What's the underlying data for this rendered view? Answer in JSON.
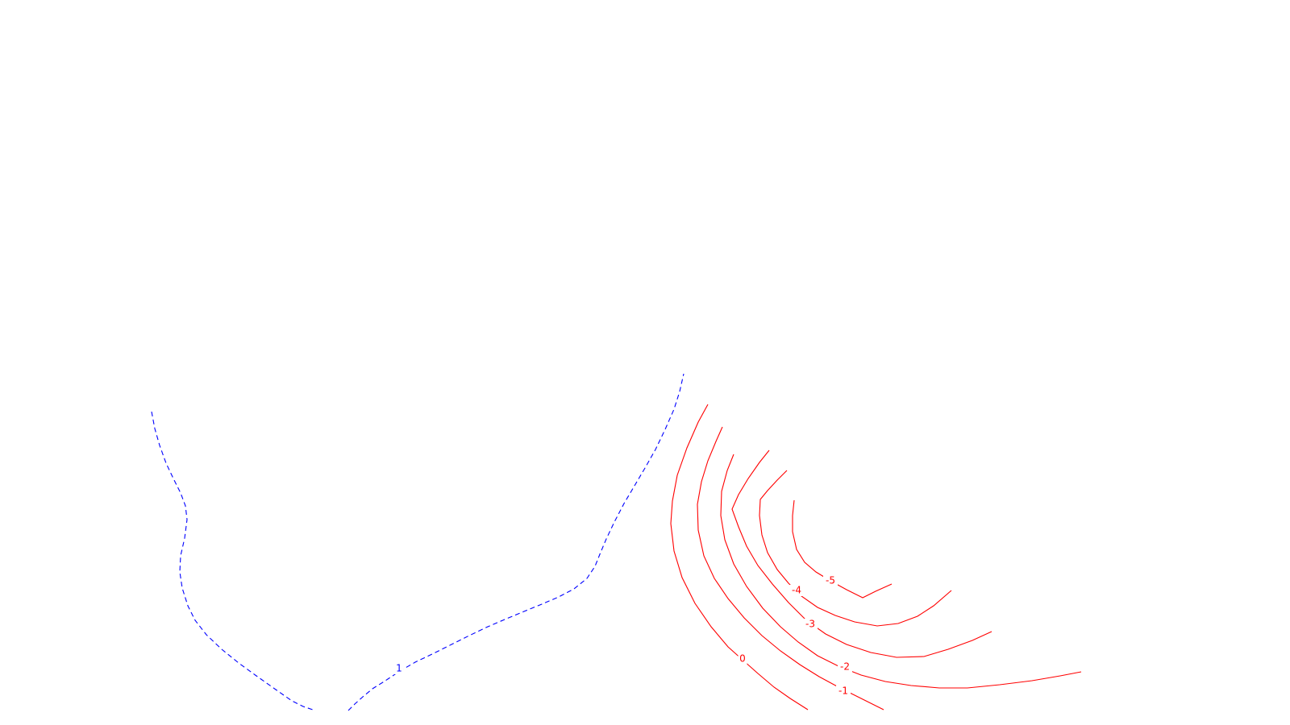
{
  "chart_data": {
    "type": "contour",
    "title": "",
    "xlabel": "",
    "ylabel": "",
    "grid": false,
    "colors": {
      "background": "#ffffff",
      "positive": "#0000ff",
      "negative": "#ff0000"
    },
    "levels": [
      {
        "level": 1,
        "label": "1",
        "color": "#0000ff",
        "style": "dashed",
        "points": [
          [
            188,
            511
          ],
          [
            192,
            532
          ],
          [
            198,
            553
          ],
          [
            206,
            575
          ],
          [
            215,
            594
          ],
          [
            224,
            612
          ],
          [
            230,
            628
          ],
          [
            232,
            645
          ],
          [
            229,
            668
          ],
          [
            224,
            690
          ],
          [
            223,
            710
          ],
          [
            226,
            730
          ],
          [
            233,
            752
          ],
          [
            242,
            770
          ],
          [
            256,
            788
          ],
          [
            275,
            806
          ],
          [
            296,
            823
          ],
          [
            318,
            839
          ],
          [
            342,
            856
          ],
          [
            362,
            870
          ],
          [
            376,
            877
          ],
          [
            388,
            881
          ]
        ],
        "points2": [
          [
            432,
            882
          ],
          [
            440,
            874
          ],
          [
            450,
            865
          ],
          [
            462,
            855
          ],
          [
            478,
            845
          ],
          [
            496,
            833
          ],
          [
            515,
            822
          ],
          [
            538,
            811
          ],
          [
            560,
            800
          ],
          [
            582,
            789
          ],
          [
            605,
            778
          ],
          [
            626,
            769
          ],
          [
            650,
            759
          ],
          [
            672,
            750
          ],
          [
            693,
            741
          ],
          [
            712,
            731
          ],
          [
            728,
            718
          ],
          [
            738,
            703
          ],
          [
            744,
            688
          ],
          [
            752,
            669
          ],
          [
            762,
            648
          ],
          [
            774,
            625
          ],
          [
            787,
            603
          ],
          [
            800,
            581
          ],
          [
            813,
            558
          ],
          [
            825,
            533
          ],
          [
            836,
            508
          ],
          [
            843,
            486
          ],
          [
            848,
            464
          ]
        ],
        "label_at": [
          495,
          830
        ]
      },
      {
        "level": 0,
        "label": "0",
        "color": "#ff0000",
        "style": "solid",
        "points": [
          [
            878,
            502
          ],
          [
            866,
            524
          ],
          [
            852,
            556
          ],
          [
            840,
            590
          ],
          [
            834,
            622
          ],
          [
            832,
            650
          ],
          [
            836,
            684
          ],
          [
            846,
            717
          ],
          [
            862,
            749
          ],
          [
            882,
            778
          ],
          [
            903,
            803
          ],
          [
            922,
            820
          ],
          [
            940,
            836
          ],
          [
            960,
            853
          ],
          [
            980,
            867
          ],
          [
            1002,
            881
          ]
        ],
        "label_at": [
          921,
          818
        ]
      },
      {
        "level": -1,
        "label": "-1",
        "color": "#ff0000",
        "style": "solid",
        "points": [
          [
            896,
            530
          ],
          [
            888,
            548
          ],
          [
            878,
            572
          ],
          [
            870,
            598
          ],
          [
            865,
            626
          ],
          [
            866,
            658
          ],
          [
            873,
            690
          ],
          [
            886,
            718
          ],
          [
            903,
            743
          ],
          [
            923,
            767
          ],
          [
            945,
            789
          ],
          [
            968,
            808
          ],
          [
            992,
            825
          ],
          [
            1016,
            840
          ],
          [
            1040,
            853
          ],
          [
            1062,
            864
          ],
          [
            1080,
            873
          ],
          [
            1096,
            881
          ]
        ],
        "label_at": [
          1046,
          858
        ]
      },
      {
        "level": -2,
        "label": "-2",
        "color": "#ff0000",
        "style": "solid",
        "points": [
          [
            910,
            564
          ],
          [
            902,
            584
          ],
          [
            895,
            610
          ],
          [
            894,
            640
          ],
          [
            899,
            670
          ],
          [
            910,
            700
          ],
          [
            926,
            728
          ],
          [
            946,
            755
          ],
          [
            968,
            778
          ],
          [
            990,
            797
          ],
          [
            1014,
            814
          ],
          [
            1040,
            827
          ],
          [
            1068,
            838
          ],
          [
            1098,
            846
          ],
          [
            1130,
            851
          ],
          [
            1165,
            854
          ],
          [
            1200,
            854
          ],
          [
            1240,
            850
          ],
          [
            1280,
            845
          ],
          [
            1315,
            839
          ],
          [
            1341,
            834
          ]
        ],
        "label_at": [
          1048,
          828
        ]
      },
      {
        "level": -3,
        "label": "-3",
        "color": "#ff0000",
        "style": "solid",
        "points": [
          [
            954,
            559
          ],
          [
            942,
            574
          ],
          [
            928,
            594
          ],
          [
            916,
            614
          ],
          [
            908,
            632
          ],
          [
            916,
            654
          ],
          [
            926,
            678
          ],
          [
            940,
            702
          ],
          [
            958,
            725
          ],
          [
            978,
            748
          ],
          [
            1000,
            770
          ],
          [
            1024,
            787
          ],
          [
            1050,
            800
          ],
          [
            1080,
            810
          ],
          [
            1112,
            816
          ],
          [
            1146,
            815
          ],
          [
            1176,
            806
          ],
          [
            1206,
            795
          ],
          [
            1230,
            784
          ]
        ],
        "label_at": [
          1005,
          775
        ]
      },
      {
        "level": -4,
        "label": "-4",
        "color": "#ff0000",
        "style": "solid",
        "points": [
          [
            976,
            584
          ],
          [
            964,
            596
          ],
          [
            952,
            609
          ],
          [
            943,
            620
          ],
          [
            942,
            640
          ],
          [
            945,
            664
          ],
          [
            952,
            686
          ],
          [
            964,
            707
          ],
          [
            978,
            724
          ],
          [
            994,
            740
          ],
          [
            1014,
            754
          ],
          [
            1036,
            764
          ],
          [
            1060,
            772
          ],
          [
            1088,
            777
          ],
          [
            1114,
            774
          ],
          [
            1138,
            765
          ],
          [
            1158,
            752
          ],
          [
            1180,
            733
          ]
        ],
        "label_at": [
          988,
          733
        ]
      },
      {
        "level": -5,
        "label": "-5",
        "color": "#ff0000",
        "style": "solid",
        "points": [
          [
            985,
            621
          ],
          [
            983,
            640
          ],
          [
            983,
            660
          ],
          [
            988,
            682
          ],
          [
            998,
            698
          ],
          [
            1012,
            710
          ],
          [
            1030,
            721
          ],
          [
            1050,
            732
          ],
          [
            1070,
            742
          ],
          [
            1086,
            734
          ],
          [
            1106,
            725
          ]
        ],
        "label_at": [
          1030,
          721
        ]
      }
    ]
  }
}
